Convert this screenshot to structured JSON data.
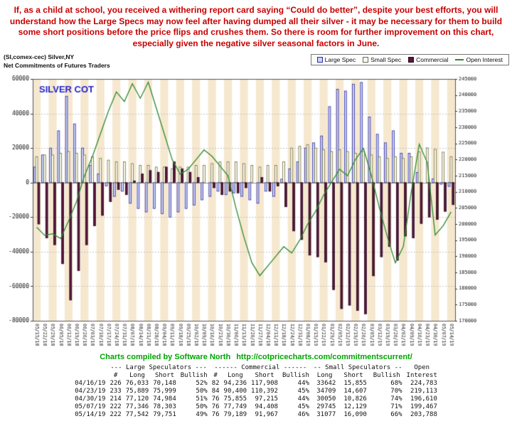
{
  "commentary": {
    "text": "If, as a child at school, you received a withering report card saying “Could do better”, despite your best efforts, you will understand how the Large Specs may now feel after having dumped all their silver - it may be necessary for them to build some short positions before the price flips and crushes them. So there is room for further improvement on this chart, especially given the negative silver seasonal factors in June."
  },
  "credit": {
    "label": "Charts compiled by Software North",
    "url": "http://cotpricecharts.com/commitmentscurrent/"
  },
  "colors": {
    "stripe": "#f6e8cf",
    "plot_border": "#555555",
    "grid": "#c4c4c4",
    "zero_line": "#909090",
    "title_blue": "#2424c8",
    "commentary_red": "#c80000",
    "credit_green": "#00a500"
  },
  "chart_data": {
    "type": "bar",
    "title": "SILVER COT",
    "instrument": "(SI,comex-cec) Silver,NY",
    "subtitle": "Net Commitments of Futures Traders",
    "legend_position": "top-right",
    "background_stripes": true,
    "x": [
      "05/15/18",
      "05/22/18",
      "05/29/18",
      "06/05/18",
      "06/12/18",
      "06/19/18",
      "06/26/18",
      "07/03/18",
      "07/10/18",
      "07/17/18",
      "07/24/18",
      "07/31/18",
      "08/07/18",
      "08/14/18",
      "08/21/18",
      "08/28/18",
      "09/04/18",
      "09/11/18",
      "09/18/18",
      "09/25/18",
      "10/02/18",
      "10/09/18",
      "10/16/18",
      "10/23/18",
      "10/30/18",
      "11/06/18",
      "11/13/18",
      "11/20/18",
      "11/27/18",
      "12/04/18",
      "12/11/18",
      "12/18/18",
      "12/24/18",
      "12/31/18",
      "01/08/19",
      "01/15/19",
      "01/22/19",
      "01/29/19",
      "02/05/19",
      "02/12/19",
      "02/19/19",
      "02/26/19",
      "03/05/19",
      "03/12/19",
      "03/19/19",
      "03/26/19",
      "04/02/19",
      "04/09/19",
      "04/16/19",
      "04/23/19",
      "04/30/19",
      "05/07/19",
      "05/14/19"
    ],
    "series": [
      {
        "name": "Large Spec",
        "type": "bar",
        "axis": "left",
        "color": "#ccd4f4",
        "border": "#2929a3",
        "values": [
          9000,
          16000,
          20000,
          30000,
          50000,
          34000,
          20000,
          10000,
          5000,
          -2000,
          -8000,
          -5000,
          -12000,
          -15000,
          -17000,
          -15000,
          -18000,
          -20000,
          -17000,
          -15000,
          -13000,
          -10000,
          -8000,
          -5000,
          -7000,
          -6000,
          -8000,
          -10000,
          -12000,
          -5000,
          -8000,
          2000,
          8000,
          12000,
          20000,
          23000,
          27000,
          44000,
          54000,
          53000,
          57000,
          58000,
          38000,
          28000,
          23000,
          30000,
          17000,
          17000,
          5885,
          -110,
          2136,
          -957,
          -2209
        ]
      },
      {
        "name": "Small Spec",
        "type": "bar",
        "axis": "left",
        "color": "#ffffee",
        "border": "#6b6b45",
        "values": [
          15000,
          16000,
          16000,
          17000,
          18000,
          17000,
          16000,
          15000,
          14000,
          13000,
          12000,
          12000,
          11000,
          10000,
          10000,
          9000,
          9000,
          8000,
          9000,
          9000,
          10000,
          10000,
          11000,
          12000,
          12000,
          12000,
          11000,
          10000,
          9000,
          10000,
          10000,
          12000,
          20000,
          21000,
          22000,
          20000,
          19000,
          18000,
          19000,
          18000,
          17000,
          18000,
          16000,
          15000,
          14000,
          15000,
          14000,
          15000,
          17787,
          20102,
          19224,
          17616,
          14987
        ]
      },
      {
        "name": "Commercial",
        "type": "bar",
        "axis": "left",
        "color": "#58153a",
        "border": "#2a0a1c",
        "values": [
          -24000,
          -32000,
          -36000,
          -47000,
          -68000,
          -51000,
          -36000,
          -25000,
          -19000,
          -11000,
          -4000,
          -7000,
          1000,
          5000,
          7000,
          6000,
          9000,
          12000,
          8000,
          6000,
          3000,
          0,
          -3000,
          -7000,
          -5000,
          -6000,
          -3000,
          0,
          3000,
          -5000,
          -2000,
          -14000,
          -28000,
          -33000,
          -42000,
          -43000,
          -46000,
          -62000,
          -73000,
          -71000,
          -74000,
          -76000,
          -54000,
          -43000,
          -37000,
          -45000,
          -31000,
          -32000,
          -23672,
          -19992,
          -21360,
          -16659,
          -12778
        ]
      },
      {
        "name": "Open Interest",
        "type": "line",
        "axis": "right",
        "color": "#2d8a2d",
        "values": [
          199000,
          196500,
          197000,
          195500,
          201000,
          207000,
          215000,
          221000,
          228000,
          235000,
          241000,
          238000,
          243500,
          239000,
          244000,
          236000,
          228000,
          220000,
          215500,
          217000,
          220000,
          223000,
          221000,
          218000,
          215000,
          205000,
          196000,
          188000,
          184000,
          187000,
          190000,
          193000,
          191000,
          195000,
          200000,
          204000,
          209000,
          213000,
          217000,
          215000,
          220000,
          223500,
          215000,
          205000,
          196000,
          188000,
          193000,
          210000,
          224783,
          219113,
          196610,
          199467,
          203788
        ]
      }
    ],
    "left_axis": {
      "min": -80000,
      "max": 60000,
      "tick_step": 20000,
      "tick_labels": [
        "60000",
        "40000",
        "20000",
        "0",
        "-20000",
        "-40000",
        "-60000",
        "-80000"
      ]
    },
    "right_axis": {
      "min": 170000,
      "max": 245000,
      "tick_step": 5000,
      "tick_labels": [
        "245000",
        "240000",
        "235000",
        "230000",
        "225000",
        "220000",
        "215000",
        "210000",
        "205000",
        "200000",
        "195000",
        "190000",
        "185000",
        "180000",
        "175000",
        "170000"
      ]
    }
  },
  "table": {
    "group_headers": [
      "--- Large Speculators ---",
      "------ Commercial ------",
      "-- Small Speculators --",
      "Open"
    ],
    "col_headers": [
      "",
      "#",
      "Long",
      "Short",
      "Bullish",
      "#",
      "Long",
      "Short",
      "Bullish",
      "Long",
      "Short",
      "Bullish",
      "Interest"
    ],
    "rows": [
      [
        "04/16/19",
        "226",
        "76,033",
        "70,148",
        "52%",
        "82",
        "94,236",
        "117,908",
        "44%",
        "33642",
        "15,855",
        "68%",
        "224,783"
      ],
      [
        "04/23/19",
        "233",
        "75,889",
        "75,999",
        "50%",
        "84",
        "90,400",
        "110,392",
        "45%",
        "34709",
        "14,607",
        "70%",
        "219,113"
      ],
      [
        "04/30/19",
        "214",
        "77,120",
        "74,984",
        "51%",
        "76",
        "75,855",
        "97,215",
        "44%",
        "30050",
        "10,826",
        "74%",
        "196,610"
      ],
      [
        "05/07/19",
        "222",
        "77,346",
        "78,303",
        "50%",
        "76",
        "77,749",
        "94,408",
        "45%",
        "29745",
        "12,129",
        "71%",
        "199,467"
      ],
      [
        "05/14/19",
        "222",
        "77,542",
        "79,751",
        "49%",
        "76",
        "79,189",
        "91,967",
        "46%",
        "31077",
        "16,090",
        "66%",
        "203,788"
      ]
    ]
  }
}
